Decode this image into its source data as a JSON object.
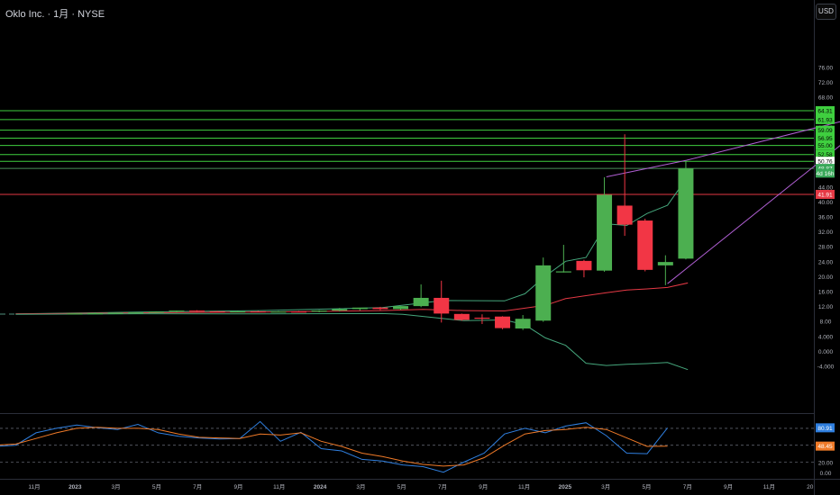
{
  "header": {
    "symbol_line": "Oklo Inc. · 1月 · NYSE",
    "currency_button": "USD"
  },
  "colors": {
    "up": "#26a69a",
    "up_candle": "#4caf50",
    "down": "#f23645",
    "fib": "#3fcf3f",
    "support": "#e53945",
    "stoch_k": "#2f7fdf",
    "stoch_d": "#ef7a28",
    "band_mid": "#e53945",
    "band_outer": "#45a67c",
    "channel": "#b05fd3"
  },
  "chart_data": {
    "type": "candlestick",
    "price_axis": {
      "labels": [
        "76.00",
        "72.00",
        "68.00",
        "64.00",
        "60.00",
        "56.00",
        "52.00",
        "48.00",
        "44.00",
        "40.00",
        "36.00",
        "32.00",
        "28.00",
        "24.00",
        "20.00",
        "16.00",
        "12.00",
        "8.00",
        "4.000",
        "0.000",
        "-4.000"
      ],
      "ylim": [
        -6,
        78
      ]
    },
    "time_axis": {
      "labels": [
        "11月",
        "2023",
        "3月",
        "5月",
        "7月",
        "9月",
        "11月",
        "2024",
        "3月",
        "5月",
        "7月",
        "9月",
        "11月",
        "2025",
        "3月",
        "5月",
        "7月",
        "9月",
        "11月",
        "20"
      ]
    },
    "price_badges": [
      {
        "text": "64.31",
        "value": 64.31,
        "kind": "fib"
      },
      {
        "text": "61.93",
        "value": 61.93,
        "kind": "fib"
      },
      {
        "text": "59.09",
        "value": 59.09,
        "kind": "fib"
      },
      {
        "text": "56.95",
        "value": 56.95,
        "kind": "fib"
      },
      {
        "text": "55.00",
        "value": 55.0,
        "kind": "fib"
      },
      {
        "text": "52.58",
        "value": 52.58,
        "kind": "fib"
      },
      {
        "text": "50.76",
        "value": 50.76,
        "kind": "white"
      },
      {
        "text": "48.87",
        "value": 48.87,
        "kind": "last"
      },
      {
        "text": "4d 16h",
        "value": 47.6,
        "kind": "countdown"
      },
      {
        "text": "41.91",
        "value": 41.91,
        "kind": "support"
      }
    ],
    "horizontal_levels": [
      64.31,
      61.93,
      59.09,
      56.95,
      55.0,
      52.58,
      50.76,
      48.87
    ],
    "support_level": 41.91,
    "candles": [
      {
        "t": 2.9,
        "o": 10.0,
        "h": 10.1,
        "l": 9.9,
        "c": 10.05
      },
      {
        "t": 3.9,
        "o": 10.05,
        "h": 10.2,
        "l": 9.95,
        "c": 10.1
      },
      {
        "t": 4.9,
        "o": 10.1,
        "h": 10.25,
        "l": 10.0,
        "c": 10.2
      },
      {
        "t": 5.9,
        "o": 10.2,
        "h": 10.4,
        "l": 10.1,
        "c": 10.3
      },
      {
        "t": 6.9,
        "o": 10.3,
        "h": 10.6,
        "l": 10.2,
        "c": 10.5
      },
      {
        "t": 7.9,
        "o": 10.5,
        "h": 10.8,
        "l": 10.3,
        "c": 10.8
      },
      {
        "t": 8.9,
        "o": 10.8,
        "h": 10.9,
        "l": 10.4,
        "c": 10.6
      },
      {
        "t": 9.9,
        "o": 10.6,
        "h": 10.7,
        "l": 10.4,
        "c": 10.5
      },
      {
        "t": 10.9,
        "o": 10.5,
        "h": 10.7,
        "l": 10.35,
        "c": 10.6
      },
      {
        "t": 11.9,
        "o": 10.6,
        "h": 10.7,
        "l": 10.4,
        "c": 10.5
      },
      {
        "t": 12.9,
        "o": 10.5,
        "h": 10.65,
        "l": 10.35,
        "c": 10.55
      },
      {
        "t": 13.9,
        "o": 10.55,
        "h": 10.7,
        "l": 10.4,
        "c": 10.5
      },
      {
        "t": 14.9,
        "o": 10.5,
        "h": 10.9,
        "l": 10.35,
        "c": 10.8
      },
      {
        "t": 15.9,
        "o": 10.8,
        "h": 11.5,
        "l": 10.6,
        "c": 11.2
      },
      {
        "t": 16.9,
        "o": 11.2,
        "h": 11.5,
        "l": 10.8,
        "c": 11.6
      },
      {
        "t": 17.9,
        "o": 11.6,
        "h": 11.8,
        "l": 10.9,
        "c": 11.2
      },
      {
        "t": 18.9,
        "o": 11.2,
        "h": 12.0,
        "l": 11.0,
        "c": 12.0
      },
      {
        "t": 19.9,
        "o": 12.0,
        "h": 17.8,
        "l": 11.7,
        "c": 14.2
      },
      {
        "t": 20.9,
        "o": 14.2,
        "h": 18.8,
        "l": 7.6,
        "c": 10.0
      },
      {
        "t": 21.9,
        "o": 9.9,
        "h": 10.0,
        "l": 8.1,
        "c": 8.3
      },
      {
        "t": 22.9,
        "o": 8.9,
        "h": 9.8,
        "l": 7.2,
        "c": 8.7
      },
      {
        "t": 23.9,
        "o": 9.2,
        "h": 9.3,
        "l": 5.8,
        "c": 6.1
      },
      {
        "t": 24.9,
        "o": 6.0,
        "h": 9.6,
        "l": 5.6,
        "c": 8.6
      },
      {
        "t": 25.9,
        "o": 8.1,
        "h": 25.0,
        "l": 7.8,
        "c": 22.9
      },
      {
        "t": 26.9,
        "o": 21.2,
        "h": 28.4,
        "l": 21.0,
        "c": 21.3
      },
      {
        "t": 27.9,
        "o": 24.1,
        "h": 24.4,
        "l": 19.7,
        "c": 21.6
      },
      {
        "t": 28.9,
        "o": 21.5,
        "h": 46.5,
        "l": 21.2,
        "c": 41.8
      },
      {
        "t": 29.9,
        "o": 38.9,
        "h": 58.0,
        "l": 30.8,
        "c": 33.8
      },
      {
        "t": 30.9,
        "o": 34.9,
        "h": 35.4,
        "l": 21.3,
        "c": 21.7
      },
      {
        "t": 31.9,
        "o": 22.9,
        "h": 25.6,
        "l": 17.6,
        "c": 23.8
      },
      {
        "t": 32.9,
        "o": 24.7,
        "h": 50.9,
        "l": 24.5,
        "c": 48.87
      }
    ],
    "band_upper": [
      [
        0,
        9.9
      ],
      [
        6,
        10.4
      ],
      [
        12,
        10.8
      ],
      [
        18,
        11.6
      ],
      [
        21,
        13.5
      ],
      [
        24,
        13.4
      ],
      [
        25,
        15.3
      ],
      [
        26,
        20.0
      ],
      [
        27,
        24.0
      ],
      [
        28,
        25.0
      ],
      [
        29,
        34.0
      ],
      [
        30,
        33.6
      ],
      [
        31,
        36.8
      ],
      [
        32,
        39.0
      ],
      [
        33,
        46.7
      ]
    ],
    "band_mid": [
      [
        0,
        9.9
      ],
      [
        6,
        10.2
      ],
      [
        12,
        10.4
      ],
      [
        18,
        10.8
      ],
      [
        20,
        11.1
      ],
      [
        22,
        10.8
      ],
      [
        24,
        10.7
      ],
      [
        26,
        12.2
      ],
      [
        27,
        14.0
      ],
      [
        28,
        14.8
      ],
      [
        29,
        15.6
      ],
      [
        30,
        16.3
      ],
      [
        31,
        16.6
      ],
      [
        32,
        17.0
      ],
      [
        33,
        18.2
      ]
    ],
    "band_lower": [
      [
        0,
        9.8
      ],
      [
        6,
        9.95
      ],
      [
        12,
        9.9
      ],
      [
        18,
        10.0
      ],
      [
        19,
        9.8
      ],
      [
        22,
        8.1
      ],
      [
        24,
        8.3
      ],
      [
        25,
        7.0
      ],
      [
        26,
        3.5
      ],
      [
        27,
        1.5
      ],
      [
        28,
        -3.3
      ],
      [
        29,
        -3.9
      ],
      [
        30,
        -3.6
      ],
      [
        31,
        -3.4
      ],
      [
        32,
        -3.1
      ],
      [
        33,
        -5.0
      ]
    ],
    "channel": [
      [
        [
          29.0,
          46.6
        ],
        [
          32.9,
          51.0
        ],
        [
          42.6,
          64.3
        ]
      ],
      [
        [
          32.0,
          18.0
        ],
        [
          42.6,
          64.3
        ]
      ]
    ],
    "stochastic": {
      "axis_labels": [
        "80.00",
        "20.00",
        "0.00"
      ],
      "k_badge": "80.91",
      "k_value": 80.91,
      "d_badge": "48.45",
      "d_value": 48.45,
      "k": [
        [
          -3,
          47
        ],
        [
          -1,
          48
        ],
        [
          0,
          50
        ],
        [
          1,
          72
        ],
        [
          2,
          80
        ],
        [
          3,
          86
        ],
        [
          4,
          81
        ],
        [
          5,
          78
        ],
        [
          6,
          87
        ],
        [
          7,
          72
        ],
        [
          8,
          66
        ],
        [
          9,
          63
        ],
        [
          10,
          61
        ],
        [
          11,
          62
        ],
        [
          12,
          92
        ],
        [
          13,
          57
        ],
        [
          14,
          73
        ],
        [
          15,
          44
        ],
        [
          16,
          40
        ],
        [
          17,
          25
        ],
        [
          18,
          22
        ],
        [
          19,
          15
        ],
        [
          20,
          12
        ],
        [
          21,
          2
        ],
        [
          22,
          20
        ],
        [
          23,
          36
        ],
        [
          24,
          70
        ],
        [
          25,
          80
        ],
        [
          26,
          72
        ],
        [
          27,
          84
        ],
        [
          28,
          90
        ],
        [
          29,
          67
        ],
        [
          30,
          36
        ],
        [
          31,
          35
        ],
        [
          32,
          80.91
        ]
      ],
      "d": [
        [
          -3,
          48
        ],
        [
          -1,
          50
        ],
        [
          0,
          52
        ],
        [
          1,
          62
        ],
        [
          2,
          72
        ],
        [
          3,
          80
        ],
        [
          4,
          82
        ],
        [
          5,
          80
        ],
        [
          6,
          80
        ],
        [
          7,
          78
        ],
        [
          8,
          70
        ],
        [
          9,
          64
        ],
        [
          10,
          63
        ],
        [
          11,
          62
        ],
        [
          12,
          70
        ],
        [
          13,
          68
        ],
        [
          14,
          72
        ],
        [
          15,
          57
        ],
        [
          16,
          48
        ],
        [
          17,
          36
        ],
        [
          18,
          30
        ],
        [
          19,
          22
        ],
        [
          20,
          16
        ],
        [
          21,
          13
        ],
        [
          22,
          15
        ],
        [
          23,
          28
        ],
        [
          24,
          50
        ],
        [
          25,
          70
        ],
        [
          26,
          76
        ],
        [
          27,
          78
        ],
        [
          28,
          82
        ],
        [
          29,
          78
        ],
        [
          30,
          63
        ],
        [
          31,
          48
        ],
        [
          32,
          48.45
        ]
      ]
    }
  }
}
